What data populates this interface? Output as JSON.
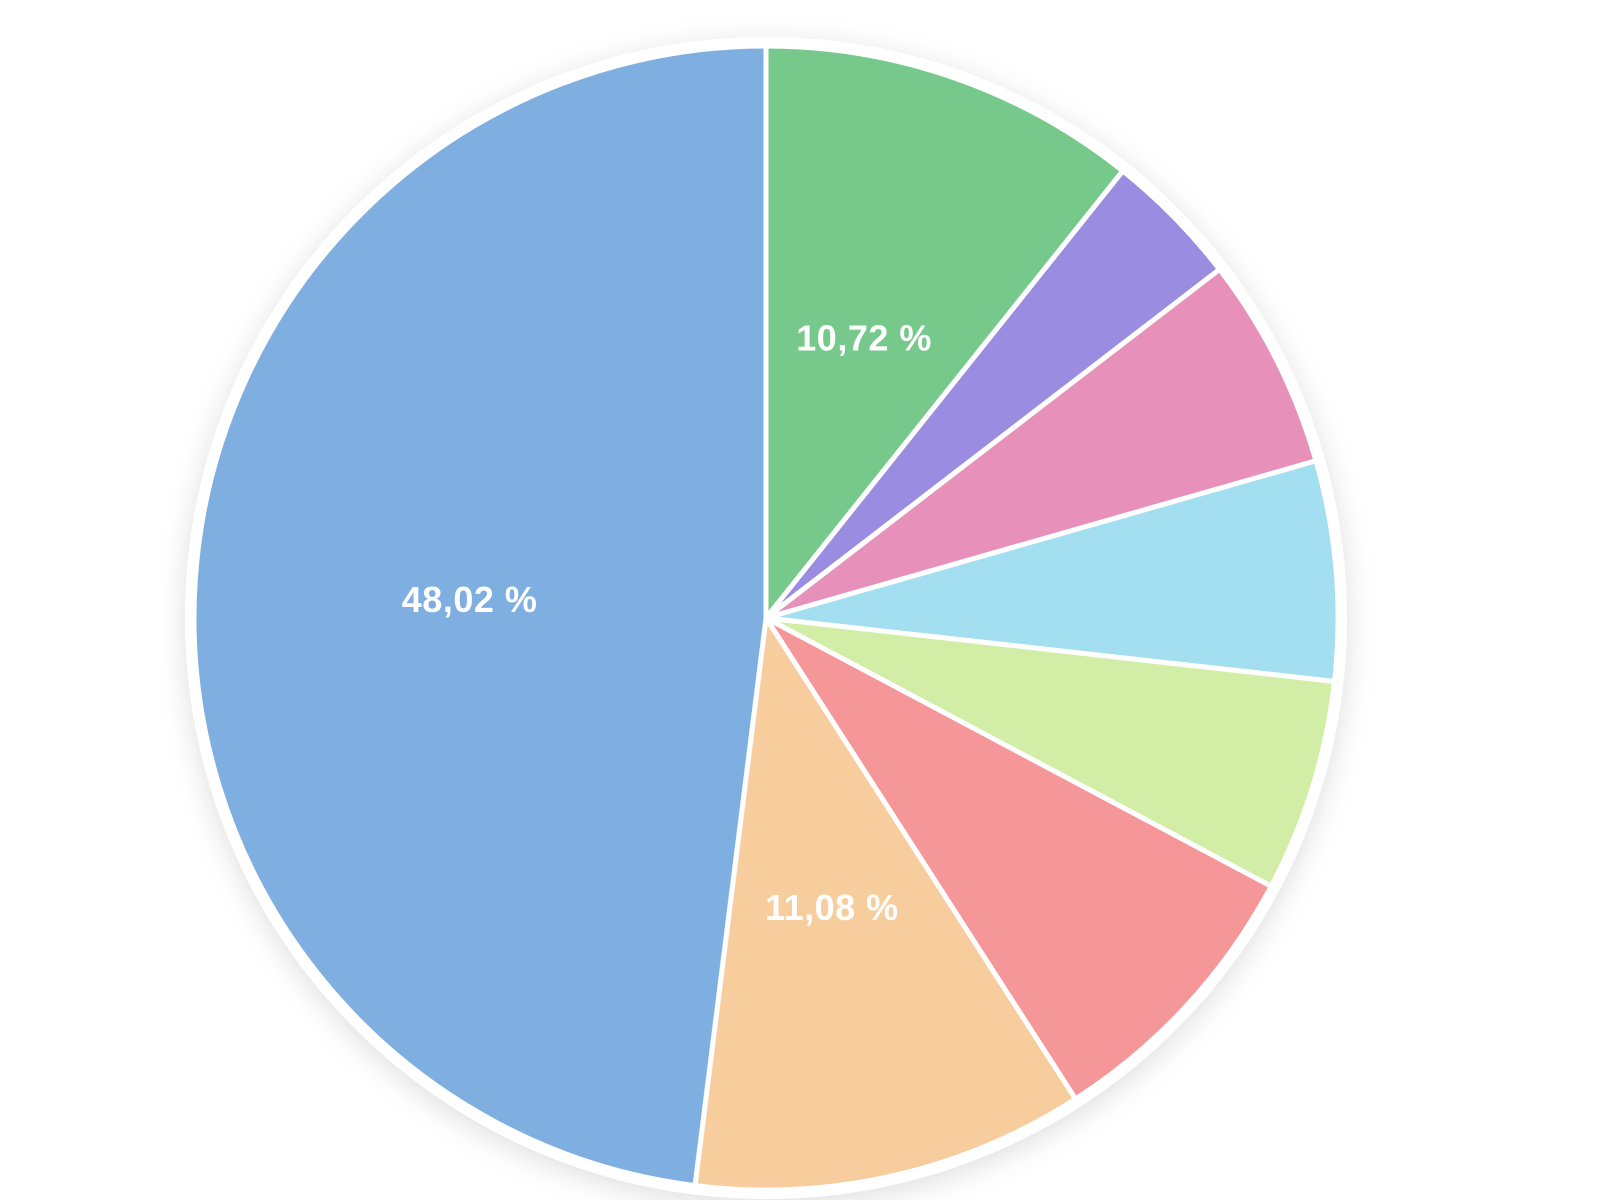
{
  "page": {
    "background_color": "#ffffff"
  },
  "chart_data": {
    "type": "pie",
    "title": "",
    "legend": "none",
    "direction": "clockwise",
    "start_angle_deg": 0,
    "label_color": "#ffffff",
    "slice_border_color": "#ffffff",
    "slices": [
      {
        "label": "10,72 %",
        "value": 10.72,
        "color": "#76C98A",
        "show_label": true
      },
      {
        "label": "3,85 %",
        "value": 3.85,
        "color": "#9A8CE0",
        "show_label": false
      },
      {
        "label": "6,00 %",
        "value": 6.0,
        "color": "#E790B9",
        "show_label": false
      },
      {
        "label": "6,20 %",
        "value": 6.2,
        "color": "#A3DEF1",
        "show_label": false
      },
      {
        "label": "6,00 %",
        "value": 6.0,
        "color": "#D2EDA6",
        "show_label": false
      },
      {
        "label": "8,13 %",
        "value": 8.13,
        "color": "#F59698",
        "show_label": false
      },
      {
        "label": "11,08 %",
        "value": 11.08,
        "color": "#F7CD9D",
        "show_label": true
      },
      {
        "label": "48,02 %",
        "value": 48.02,
        "color": "#7FAEE0",
        "show_label": true
      }
    ]
  }
}
